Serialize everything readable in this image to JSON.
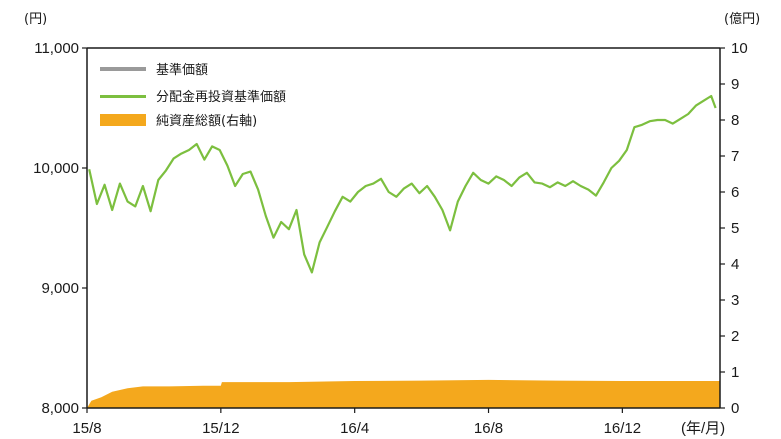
{
  "chart_data": {
    "type": "line",
    "title": "",
    "left_axis": {
      "unit_label": "(円)",
      "ylim": [
        8000,
        11000
      ],
      "ticks": [
        8000,
        9000,
        10000,
        11000
      ],
      "tick_labels": [
        "8,000",
        "9,000",
        "10,000",
        "11,000"
      ]
    },
    "right_axis": {
      "unit_label": "(億円)",
      "ylim": [
        0,
        10
      ],
      "ticks": [
        0,
        1,
        2,
        3,
        4,
        5,
        6,
        7,
        8,
        9,
        10
      ],
      "tick_labels": [
        "0",
        "1",
        "2",
        "3",
        "4",
        "5",
        "6",
        "7",
        "8",
        "9",
        "10"
      ]
    },
    "x_axis": {
      "unit_label": "(年/月)",
      "xlim": [
        "2015-08-01",
        "2017-02-28"
      ],
      "ticks": [
        "2015-08-01",
        "2015-12-01",
        "2016-04-01",
        "2016-08-01",
        "2016-12-01"
      ],
      "tick_labels": [
        "15/8",
        "15/12",
        "16/4",
        "16/8",
        "16/12"
      ]
    },
    "legend": {
      "placement": "top-left",
      "entries": [
        {
          "label": "基準価額",
          "color": "#9a9a9a",
          "kind": "line"
        },
        {
          "label": "分配金再投資基準価額",
          "color": "#7cbf3f",
          "kind": "line"
        },
        {
          "label": "純資産総額(右軸)",
          "color": "#f4a81d",
          "kind": "area"
        }
      ]
    },
    "series": [
      {
        "name": "分配金再投資基準価額",
        "axis": "left",
        "color": "#7cbf3f",
        "points": [
          [
            "2015-08-03",
            9990
          ],
          [
            "2015-08-10",
            9700
          ],
          [
            "2015-08-17",
            9860
          ],
          [
            "2015-08-24",
            9650
          ],
          [
            "2015-08-31",
            9870
          ],
          [
            "2015-09-07",
            9720
          ],
          [
            "2015-09-14",
            9680
          ],
          [
            "2015-09-21",
            9850
          ],
          [
            "2015-09-28",
            9640
          ],
          [
            "2015-10-05",
            9900
          ],
          [
            "2015-10-12",
            9980
          ],
          [
            "2015-10-19",
            10080
          ],
          [
            "2015-10-26",
            10120
          ],
          [
            "2015-11-02",
            10150
          ],
          [
            "2015-11-09",
            10200
          ],
          [
            "2015-11-16",
            10070
          ],
          [
            "2015-11-23",
            10180
          ],
          [
            "2015-11-30",
            10150
          ],
          [
            "2015-12-07",
            10020
          ],
          [
            "2015-12-14",
            9850
          ],
          [
            "2015-12-21",
            9950
          ],
          [
            "2015-12-28",
            9970
          ],
          [
            "2016-01-04",
            9820
          ],
          [
            "2016-01-11",
            9600
          ],
          [
            "2016-01-18",
            9420
          ],
          [
            "2016-01-25",
            9550
          ],
          [
            "2016-02-01",
            9490
          ],
          [
            "2016-02-08",
            9650
          ],
          [
            "2016-02-15",
            9280
          ],
          [
            "2016-02-22",
            9130
          ],
          [
            "2016-02-29",
            9380
          ],
          [
            "2016-03-07",
            9510
          ],
          [
            "2016-03-14",
            9640
          ],
          [
            "2016-03-21",
            9760
          ],
          [
            "2016-03-28",
            9720
          ],
          [
            "2016-04-04",
            9800
          ],
          [
            "2016-04-11",
            9850
          ],
          [
            "2016-04-18",
            9870
          ],
          [
            "2016-04-25",
            9910
          ],
          [
            "2016-05-02",
            9800
          ],
          [
            "2016-05-09",
            9760
          ],
          [
            "2016-05-16",
            9830
          ],
          [
            "2016-05-23",
            9870
          ],
          [
            "2016-05-30",
            9790
          ],
          [
            "2016-06-06",
            9850
          ],
          [
            "2016-06-13",
            9760
          ],
          [
            "2016-06-20",
            9650
          ],
          [
            "2016-06-27",
            9480
          ],
          [
            "2016-07-04",
            9720
          ],
          [
            "2016-07-11",
            9850
          ],
          [
            "2016-07-18",
            9960
          ],
          [
            "2016-07-25",
            9900
          ],
          [
            "2016-08-01",
            9870
          ],
          [
            "2016-08-08",
            9930
          ],
          [
            "2016-08-15",
            9900
          ],
          [
            "2016-08-22",
            9850
          ],
          [
            "2016-08-29",
            9920
          ],
          [
            "2016-09-05",
            9960
          ],
          [
            "2016-09-12",
            9880
          ],
          [
            "2016-09-19",
            9870
          ],
          [
            "2016-09-26",
            9840
          ],
          [
            "2016-10-03",
            9880
          ],
          [
            "2016-10-10",
            9850
          ],
          [
            "2016-10-17",
            9890
          ],
          [
            "2016-10-24",
            9850
          ],
          [
            "2016-10-31",
            9820
          ],
          [
            "2016-11-07",
            9770
          ],
          [
            "2016-11-14",
            9880
          ],
          [
            "2016-11-21",
            10000
          ],
          [
            "2016-11-28",
            10060
          ],
          [
            "2016-12-05",
            10150
          ],
          [
            "2016-12-12",
            10340
          ],
          [
            "2016-12-19",
            10360
          ],
          [
            "2016-12-26",
            10390
          ],
          [
            "2017-01-02",
            10400
          ],
          [
            "2017-01-09",
            10400
          ],
          [
            "2017-01-16",
            10370
          ],
          [
            "2017-01-23",
            10410
          ],
          [
            "2017-01-30",
            10450
          ],
          [
            "2017-02-06",
            10520
          ],
          [
            "2017-02-13",
            10560
          ],
          [
            "2017-02-20",
            10600
          ],
          [
            "2017-02-24",
            10500
          ]
        ]
      },
      {
        "name": "基準価額",
        "axis": "left",
        "color": "#9a9a9a",
        "points": []
      },
      {
        "name": "純資産総額(右軸)",
        "axis": "right",
        "color": "#f4a81d",
        "points": [
          [
            "2015-08-01",
            0.0
          ],
          [
            "2015-08-05",
            0.2
          ],
          [
            "2015-08-14",
            0.3
          ],
          [
            "2015-08-24",
            0.45
          ],
          [
            "2015-09-07",
            0.55
          ],
          [
            "2015-09-21",
            0.6
          ],
          [
            "2015-10-15",
            0.6
          ],
          [
            "2015-11-15",
            0.62
          ],
          [
            "2015-12-01",
            0.62
          ],
          [
            "2015-12-02",
            0.72
          ],
          [
            "2016-02-01",
            0.72
          ],
          [
            "2016-04-01",
            0.75
          ],
          [
            "2016-06-01",
            0.76
          ],
          [
            "2016-08-01",
            0.78
          ],
          [
            "2016-10-01",
            0.76
          ],
          [
            "2016-12-01",
            0.75
          ],
          [
            "2017-02-01",
            0.75
          ],
          [
            "2017-02-28",
            0.75
          ]
        ]
      }
    ]
  }
}
